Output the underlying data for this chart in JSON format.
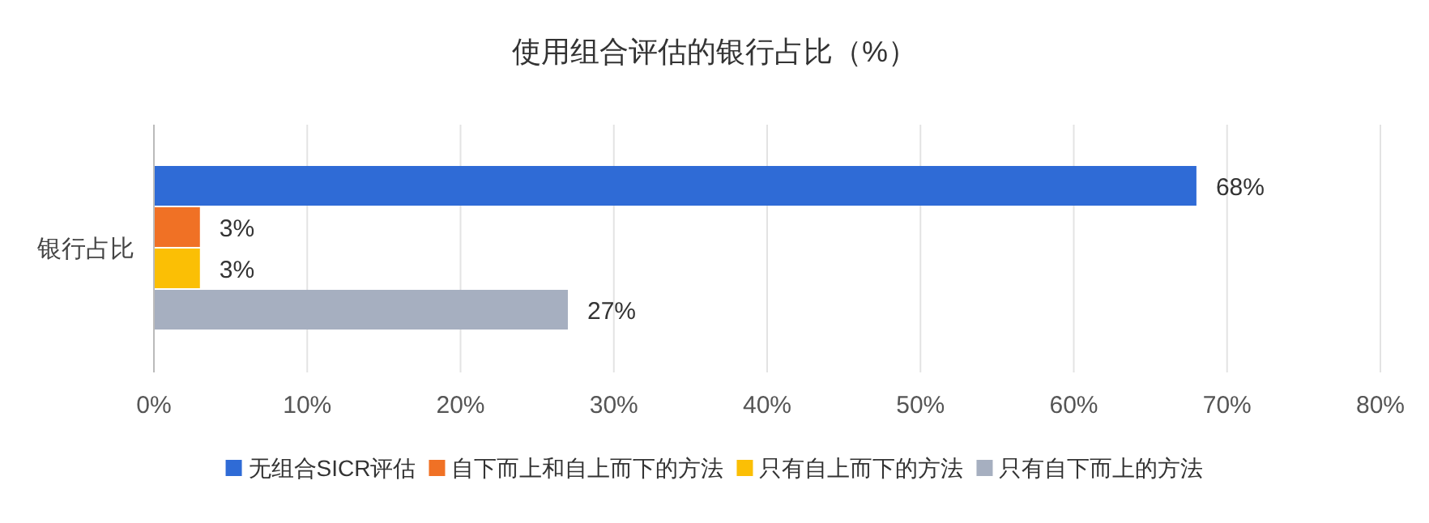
{
  "chart_data": {
    "type": "bar",
    "orientation": "horizontal",
    "title": "使用组合评估的银行占比（%）",
    "categories": [
      "银行占比"
    ],
    "series": [
      {
        "name": "无组合SICR评估",
        "color": "#2f6bd6",
        "values": [
          68
        ],
        "value_labels": [
          "68%"
        ]
      },
      {
        "name": "自下而上和自上而下的方法",
        "color": "#f07125",
        "values": [
          3
        ],
        "value_labels": [
          "3%"
        ]
      },
      {
        "name": "只有自上而下的方法",
        "color": "#fbbf05",
        "values": [
          3
        ],
        "value_labels": [
          "3%"
        ]
      },
      {
        "name": "只有自下而上的方法",
        "color": "#a6afc0",
        "values": [
          27
        ],
        "value_labels": [
          "27%"
        ]
      }
    ],
    "xlim": [
      0,
      80
    ],
    "xticks": [
      {
        "value": 0,
        "label": "0%"
      },
      {
        "value": 10,
        "label": "10%"
      },
      {
        "value": 20,
        "label": "20%"
      },
      {
        "value": 30,
        "label": "30%"
      },
      {
        "value": 40,
        "label": "40%"
      },
      {
        "value": 50,
        "label": "50%"
      },
      {
        "value": 60,
        "label": "60%"
      },
      {
        "value": 70,
        "label": "70%"
      },
      {
        "value": 80,
        "label": "80%"
      }
    ],
    "grid": "x",
    "legend": "bottom"
  }
}
